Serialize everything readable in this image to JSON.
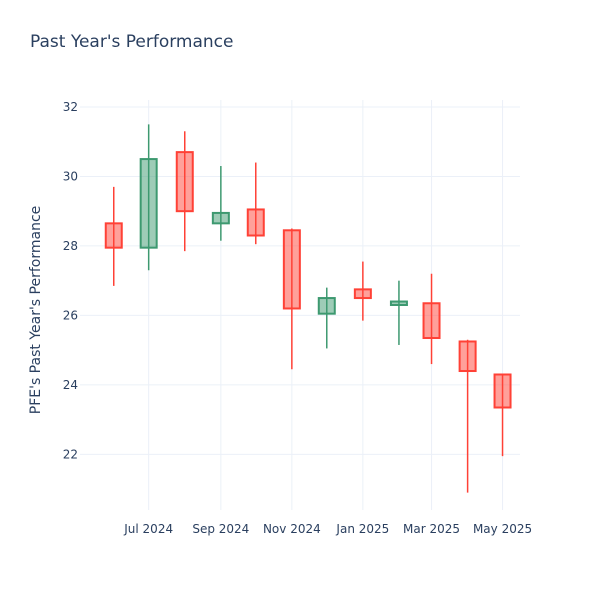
{
  "chart_data": {
    "type": "candlestick",
    "title": "Past Year's Performance",
    "ylabel": "PFE's Past Year's Performance",
    "xlabel": "",
    "ylim": [
      20.4,
      32.2
    ],
    "y_ticks": [
      22,
      24,
      26,
      28,
      30,
      32
    ],
    "x_ticks": [
      {
        "label": "Jul 2024",
        "date": "2024-07-01"
      },
      {
        "label": "Sep 2024",
        "date": "2024-09-01"
      },
      {
        "label": "Nov 2024",
        "date": "2024-11-01"
      },
      {
        "label": "Jan 2025",
        "date": "2025-01-01"
      },
      {
        "label": "Mar 2025",
        "date": "2025-03-01"
      },
      {
        "label": "May 2025",
        "date": "2025-05-01"
      }
    ],
    "xlim": [
      "2024-05-03",
      "2025-05-16"
    ],
    "grid": true,
    "increasing_color": "#3d9970",
    "decreasing_color": "#ff4136",
    "candles": [
      {
        "date": "2024-06-01",
        "open": 28.65,
        "high": 29.7,
        "low": 26.85,
        "close": 27.95
      },
      {
        "date": "2024-07-01",
        "open": 27.95,
        "high": 31.5,
        "low": 27.3,
        "close": 30.5
      },
      {
        "date": "2024-08-01",
        "open": 30.7,
        "high": 31.3,
        "low": 27.85,
        "close": 29.0
      },
      {
        "date": "2024-09-01",
        "open": 28.65,
        "high": 30.3,
        "low": 28.15,
        "close": 28.95
      },
      {
        "date": "2024-10-01",
        "open": 29.05,
        "high": 30.4,
        "low": 28.05,
        "close": 28.3
      },
      {
        "date": "2024-11-01",
        "open": 28.45,
        "high": 28.5,
        "low": 24.45,
        "close": 26.2
      },
      {
        "date": "2024-12-01",
        "open": 26.05,
        "high": 26.8,
        "low": 25.05,
        "close": 26.5
      },
      {
        "date": "2025-01-01",
        "open": 26.75,
        "high": 27.55,
        "low": 25.85,
        "close": 26.5
      },
      {
        "date": "2025-02-01",
        "open": 26.3,
        "high": 27.0,
        "low": 25.15,
        "close": 26.4
      },
      {
        "date": "2025-03-01",
        "open": 26.35,
        "high": 27.2,
        "low": 24.6,
        "close": 25.35
      },
      {
        "date": "2025-04-01",
        "open": 25.25,
        "high": 25.3,
        "low": 20.9,
        "close": 24.4
      },
      {
        "date": "2025-05-01",
        "open": 24.3,
        "high": 24.3,
        "low": 21.95,
        "close": 23.35
      }
    ]
  }
}
